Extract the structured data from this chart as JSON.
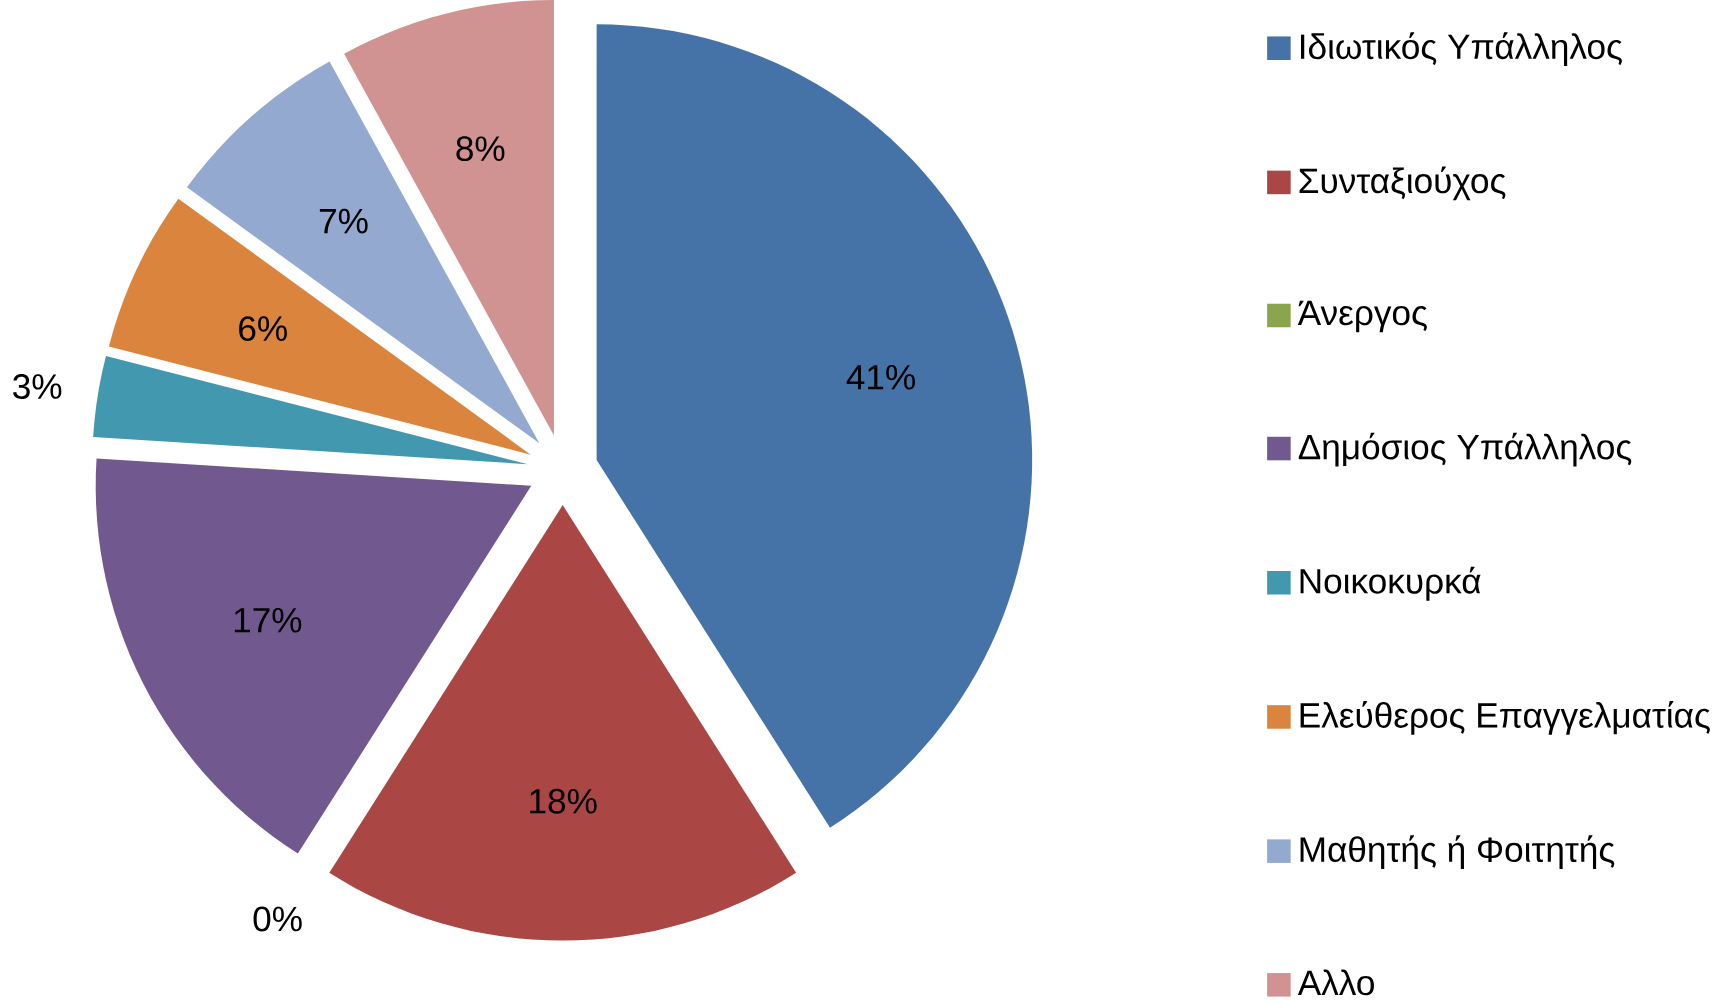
{
  "chart_data": {
    "type": "pie",
    "categories": [
      "Ιδιωτικός Υπάλληλος",
      "Συνταξιούχος",
      "Άνεργος",
      "Δημόσιος Υπάλληλος",
      "Νοικοκυρκά",
      "Ελεύθερος Επαγγελματίας",
      "Μαθητής ή Φοιτητής",
      "Αλλο"
    ],
    "values": [
      41,
      18,
      0,
      17,
      3,
      6,
      7,
      8
    ],
    "colors": [
      "#4572a7",
      "#aa4643",
      "#89a54e",
      "#71588f",
      "#4198af",
      "#db843d",
      "#93a9cf",
      "#d19392"
    ],
    "value_labels": [
      "41%",
      "18%",
      "0%",
      "17%",
      "3%",
      "6%",
      "7%",
      "8%"
    ],
    "legend": "right"
  }
}
